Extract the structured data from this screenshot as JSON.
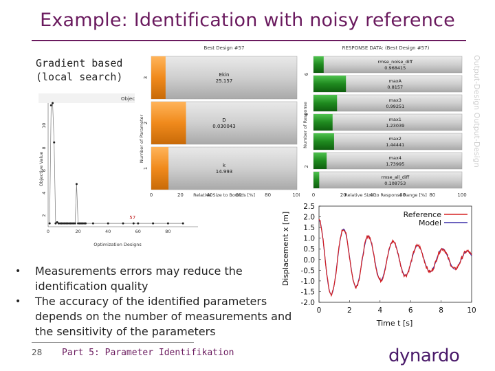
{
  "slide": {
    "title": "Example: Identification with noisy reference",
    "subtitle": "Gradient based\n(local search)",
    "bullets": [
      "Measurements errors may reduce the identification quality",
      "The accuracy of the identified parameters depends on the number of measurements and the sensitivity of the parameters"
    ],
    "page_number": "28",
    "footer": "Part 5: Parameter Identifikation",
    "logo_text": "dynardo",
    "watermark": "Output-Design  Output-Design"
  },
  "colors": {
    "title": "#6a1a5e",
    "orange_bar": "#f08a1c",
    "green_bar": "#1f8a1f",
    "reference_line": "#d62020",
    "model_line": "#3a2fa8",
    "logo": "#4a1a6a"
  },
  "chart_data": [
    {
      "type": "bar",
      "orientation": "horizontal",
      "title": "Best Design #57",
      "xlabel": "Relative Size to Bounds [%]",
      "ylabel": "Number of Parameter",
      "xticks": [
        "0",
        "20",
        "40",
        "60",
        "80",
        "100"
      ],
      "yticks": [
        "3",
        "2",
        "1"
      ],
      "xlim": [
        0,
        100
      ],
      "bars": [
        {
          "name": "Ekin",
          "value_label": "25.157",
          "rank": 3,
          "size_pct": 7
        },
        {
          "name": "D",
          "value_label": "0.030043",
          "rank": 2,
          "size_pct": 21
        },
        {
          "name": "k",
          "value_label": "14.993",
          "rank": 1,
          "size_pct": 9
        }
      ]
    },
    {
      "type": "bar",
      "orientation": "horizontal",
      "title": "RESPONSE DATA: (Best Design #57)",
      "xlabel": "Relative Size to Response Range [%]",
      "ylabel": "Number of Response",
      "xticks": [
        "0",
        "20",
        "40",
        "60",
        "80",
        "100"
      ],
      "yticks": [
        "6",
        "4",
        "2"
      ],
      "xlim": [
        0,
        100
      ],
      "bars": [
        {
          "name": "rmse_noise_diff",
          "value_label": "0.968415",
          "size_pct": 5
        },
        {
          "name": "maxA",
          "value_label": "0.8157",
          "size_pct": 20
        },
        {
          "name": "max3",
          "value_label": "0.99251",
          "size_pct": 14
        },
        {
          "name": "max1",
          "value_label": "1.23039",
          "size_pct": 11
        },
        {
          "name": "max2",
          "value_label": "1.44441",
          "size_pct": 12
        },
        {
          "name": "max4",
          "value_label": "1.73995",
          "size_pct": 7
        },
        {
          "name": "rmse_all_diff",
          "value_label": "0.108753",
          "size_pct": 2
        }
      ]
    },
    {
      "type": "scatter",
      "title": "Objective History",
      "xlabel": "Optimization Designs",
      "ylabel": "Objective Value",
      "xticks": [
        "0",
        "20",
        "40",
        "60",
        "80"
      ],
      "yticks": [
        "2",
        "4",
        "6",
        "8",
        "10"
      ],
      "xlim": [
        0,
        100
      ],
      "ylim": [
        1,
        12
      ],
      "best_label": "57",
      "x": [
        1,
        2,
        3,
        4,
        5,
        6,
        7,
        8,
        9,
        10,
        11,
        12,
        13,
        14,
        15,
        16,
        17,
        18,
        19,
        20,
        21,
        22,
        23,
        24,
        25,
        30,
        40,
        50,
        57,
        60,
        70,
        80,
        90
      ],
      "y": [
        1.3,
        11.8,
        12.0,
        8.5,
        1.3,
        1.4,
        1.3,
        1.3,
        1.3,
        1.3,
        1.3,
        1.3,
        1.3,
        1.3,
        1.3,
        1.3,
        1.3,
        1.3,
        4.8,
        1.3,
        1.3,
        1.3,
        1.3,
        1.3,
        1.3,
        1.3,
        1.3,
        1.3,
        1.3,
        1.3,
        1.3,
        1.3,
        1.3
      ]
    },
    {
      "type": "line",
      "xlabel": "Time t [s]",
      "ylabel": "Displacement x [m]",
      "xlim": [
        0,
        10
      ],
      "ylim": [
        -2.0,
        2.5
      ],
      "xticks": [
        "0",
        "2",
        "4",
        "6",
        "8",
        "10"
      ],
      "yticks": [
        "2.5",
        "2.0",
        "1.5",
        "1.0",
        "0.5",
        "0.0",
        "-0.5",
        "-1.0",
        "-1.5",
        "-2.0"
      ],
      "legend": "top-right",
      "series": [
        {
          "name": "Reference",
          "color": "#d62020",
          "amplitude0": 1.85,
          "decay": 0.16,
          "period": 1.62,
          "noise": 0.09
        },
        {
          "name": "Model",
          "color": "#3a2fa8",
          "amplitude0": 1.85,
          "decay": 0.16,
          "period": 1.62,
          "noise": 0.0
        }
      ]
    }
  ]
}
